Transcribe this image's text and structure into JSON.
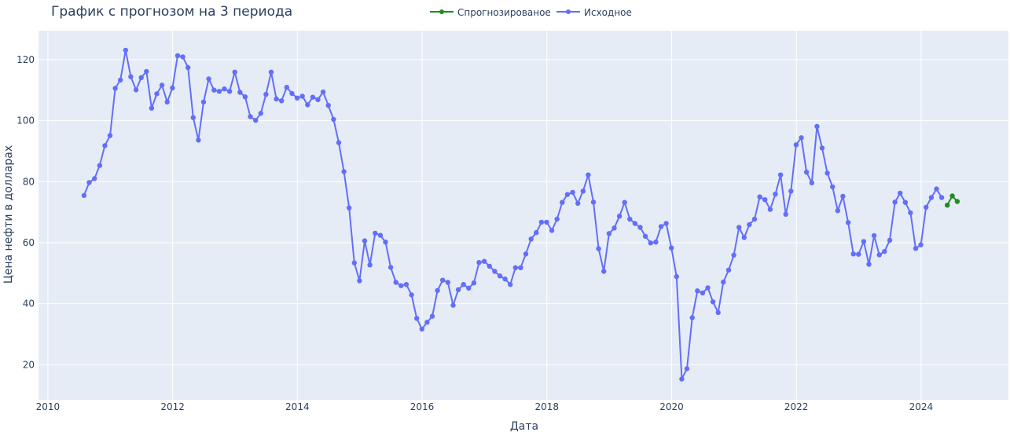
{
  "chart_data": {
    "type": "line",
    "title": "График с прогнозом на 3 периода",
    "xlabel": "Дата",
    "ylabel": "Цена нефти в долларах",
    "xlim": [
      2009.85,
      2025.4
    ],
    "ylim": [
      8.5,
      129.5
    ],
    "x_ticks": [
      2010,
      2012,
      2014,
      2016,
      2018,
      2020,
      2022,
      2024
    ],
    "y_ticks": [
      20,
      40,
      60,
      80,
      100,
      120
    ],
    "grid": true,
    "legend": "top-center, horizontal",
    "colors": {
      "plot_bg": "#e5ecf6",
      "grid": "#ffffff",
      "text": "#2a3f5f",
      "original": "#636efa",
      "forecast": "#228b22"
    },
    "series": [
      {
        "name": "Спрогнозированое",
        "x": [
          2024.42,
          2024.5,
          2024.58
        ],
        "y": [
          72.3,
          75.3,
          73.5
        ]
      },
      {
        "name": "Исходное",
        "x_start": 2010.58,
        "x_step_months": 1,
        "y": [
          75.5,
          79.7,
          81.0,
          85.3,
          91.8,
          95.1,
          110.6,
          113.3,
          123.1,
          114.4,
          110.1,
          114.1,
          116.1,
          104.1,
          108.8,
          111.6,
          106.1,
          110.7,
          121.3,
          120.9,
          117.4,
          101.0,
          93.6,
          106.1,
          113.7,
          110.0,
          109.6,
          110.4,
          109.6,
          115.9,
          109.3,
          107.8,
          101.3,
          100.1,
          102.4,
          108.6,
          115.9,
          107.1,
          106.5,
          110.9,
          108.9,
          107.4,
          108.0,
          105.2,
          107.7,
          106.9,
          109.4,
          105.0,
          100.4,
          92.8,
          83.3,
          71.4,
          53.4,
          47.5,
          60.6,
          52.7,
          63.1,
          62.4,
          60.2,
          51.9,
          47.0,
          45.9,
          46.3,
          42.9,
          35.2,
          31.7,
          33.9,
          35.9,
          44.3,
          47.7,
          47.0,
          39.5,
          44.6,
          46.3,
          45.1,
          46.8,
          53.5,
          53.9,
          52.3,
          50.6,
          49.1,
          48.1,
          46.3,
          51.8,
          51.8,
          56.3,
          61.2,
          63.3,
          66.7,
          66.7,
          64.0,
          67.7,
          73.2,
          75.8,
          76.5,
          72.9,
          76.9,
          82.2,
          73.3,
          58.0,
          50.6,
          63.0,
          64.8,
          68.7,
          73.2,
          67.7,
          66.3,
          65.0,
          62.1,
          59.9,
          60.2,
          65.3,
          66.3,
          58.3,
          48.9,
          15.3,
          18.7,
          35.4,
          44.2,
          43.5,
          45.2,
          40.6,
          37.1,
          47.1,
          51.0,
          55.9,
          65.0,
          61.7,
          65.9,
          67.7,
          75.0,
          74.1,
          70.9,
          75.9,
          82.2,
          69.3,
          76.9,
          92.1,
          94.4,
          83.1,
          79.6,
          98.1,
          91.0,
          82.8,
          78.3,
          70.5,
          75.2,
          66.6,
          56.3,
          56.2,
          60.4,
          52.9,
          62.3,
          56.0,
          57.1,
          60.8,
          73.3,
          76.2,
          73.2,
          69.8,
          58.1,
          59.3,
          71.6,
          74.8,
          77.6,
          74.8
        ]
      }
    ]
  }
}
